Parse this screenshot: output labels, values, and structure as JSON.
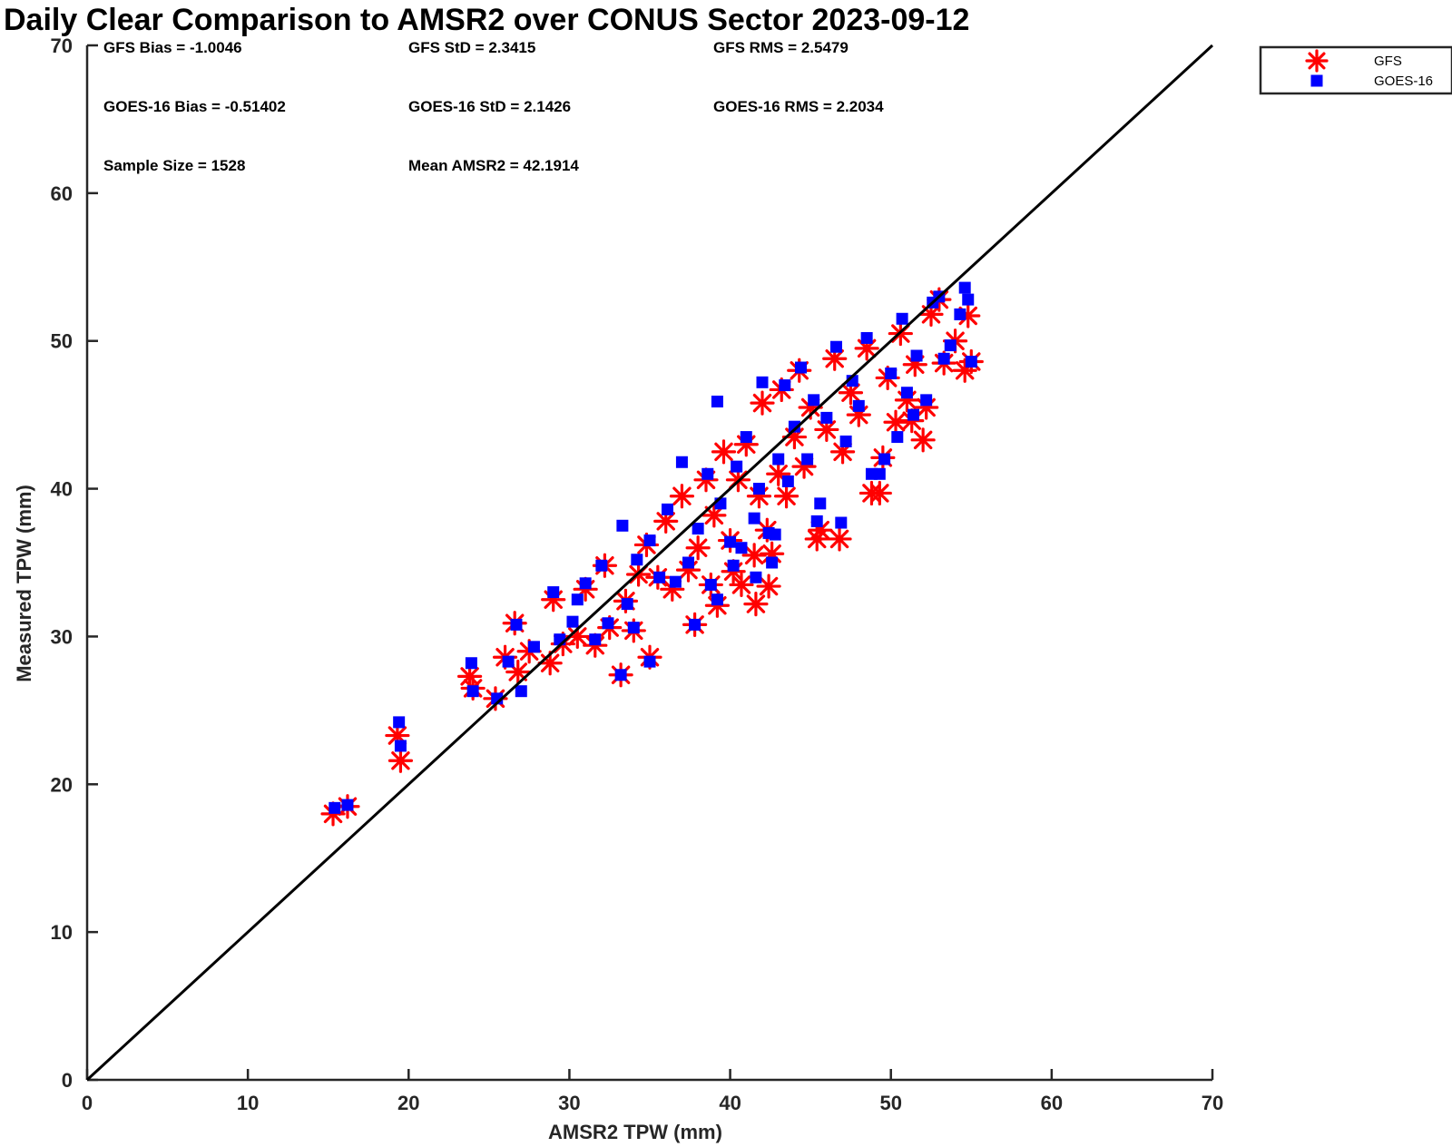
{
  "chart_data": {
    "type": "scatter",
    "title": "Daily Clear Comparison to AMSR2 over CONUS Sector 2023-09-12",
    "xlabel": "AMSR2 TPW (mm)",
    "ylabel": "Measured TPW (mm)",
    "xlim": [
      0,
      70
    ],
    "ylim": [
      0,
      70
    ],
    "xticks": [
      "0",
      "10",
      "20",
      "30",
      "40",
      "50",
      "60",
      "70"
    ],
    "yticks": [
      "0",
      "10",
      "20",
      "30",
      "40",
      "50",
      "60",
      "70"
    ],
    "grid": false,
    "legend_position": "outside top-right",
    "reference_line": {
      "x": [
        0,
        70
      ],
      "y": [
        0,
        70
      ],
      "color": "#000000"
    },
    "stats": [
      "GFS Bias = -1.0046",
      "GFS StD = 2.3415",
      "GFS RMS = 2.5479",
      "GOES-16 Bias = -0.51402",
      "GOES-16 StD = 2.1426",
      "GOES-16 RMS = 2.2034",
      "Sample Size = 1528",
      "Mean AMSR2 = 42.1914"
    ],
    "series": [
      {
        "name": "GFS",
        "marker": "asterisk",
        "color": "#ff0000",
        "points": [
          [
            15.3,
            18.0
          ],
          [
            16.2,
            18.5
          ],
          [
            19.3,
            23.3
          ],
          [
            19.5,
            21.6
          ],
          [
            23.8,
            27.3
          ],
          [
            24.0,
            26.5
          ],
          [
            25.4,
            25.8
          ],
          [
            26.0,
            28.6
          ],
          [
            26.6,
            30.9
          ],
          [
            26.8,
            27.6
          ],
          [
            27.5,
            29.0
          ],
          [
            28.8,
            28.2
          ],
          [
            29.0,
            32.5
          ],
          [
            29.6,
            29.5
          ],
          [
            30.5,
            30.0
          ],
          [
            31.0,
            33.2
          ],
          [
            31.6,
            29.4
          ],
          [
            32.2,
            34.8
          ],
          [
            32.5,
            30.6
          ],
          [
            33.2,
            27.4
          ],
          [
            33.5,
            32.4
          ],
          [
            34.0,
            30.4
          ],
          [
            34.3,
            34.2
          ],
          [
            35.0,
            28.6
          ],
          [
            34.8,
            36.2
          ],
          [
            35.5,
            34.0
          ],
          [
            36.0,
            37.8
          ],
          [
            36.4,
            33.2
          ],
          [
            37.0,
            39.5
          ],
          [
            37.4,
            34.5
          ],
          [
            37.8,
            30.8
          ],
          [
            38.0,
            36.0
          ],
          [
            38.5,
            40.6
          ],
          [
            38.8,
            33.5
          ],
          [
            39.2,
            32.1
          ],
          [
            39.0,
            38.2
          ],
          [
            39.6,
            42.5
          ],
          [
            40.0,
            36.5
          ],
          [
            40.2,
            34.4
          ],
          [
            40.5,
            40.6
          ],
          [
            40.7,
            33.5
          ],
          [
            41.0,
            43.0
          ],
          [
            41.5,
            35.5
          ],
          [
            41.6,
            32.2
          ],
          [
            41.8,
            39.5
          ],
          [
            42.0,
            45.8
          ],
          [
            42.3,
            37.2
          ],
          [
            42.4,
            33.4
          ],
          [
            42.6,
            35.6
          ],
          [
            43.0,
            41.0
          ],
          [
            43.2,
            46.7
          ],
          [
            43.5,
            39.5
          ],
          [
            44.0,
            43.5
          ],
          [
            44.3,
            48.0
          ],
          [
            44.6,
            41.5
          ],
          [
            45.0,
            45.5
          ],
          [
            45.4,
            36.6
          ],
          [
            45.6,
            37.2
          ],
          [
            46.0,
            44.0
          ],
          [
            46.5,
            48.8
          ],
          [
            46.8,
            36.6
          ],
          [
            47.0,
            42.5
          ],
          [
            47.5,
            46.5
          ],
          [
            48.0,
            45.0
          ],
          [
            48.5,
            49.5
          ],
          [
            48.8,
            39.7
          ],
          [
            49.3,
            39.7
          ],
          [
            49.5,
            42.1
          ],
          [
            49.8,
            47.5
          ],
          [
            50.3,
            44.5
          ],
          [
            50.6,
            50.5
          ],
          [
            51.0,
            46.0
          ],
          [
            51.3,
            44.6
          ],
          [
            51.5,
            48.4
          ],
          [
            52.0,
            43.3
          ],
          [
            52.2,
            45.5
          ],
          [
            52.5,
            51.8
          ],
          [
            53.0,
            52.8
          ],
          [
            53.3,
            48.5
          ],
          [
            54.0,
            50.0
          ],
          [
            54.6,
            48.0
          ],
          [
            54.8,
            51.7
          ],
          [
            55.0,
            48.6
          ]
        ]
      },
      {
        "name": "GOES-16",
        "marker": "square",
        "color": "#0000ff",
        "points": [
          [
            15.4,
            18.4
          ],
          [
            16.2,
            18.6
          ],
          [
            19.4,
            24.2
          ],
          [
            19.5,
            22.6
          ],
          [
            23.9,
            28.2
          ],
          [
            24.0,
            26.3
          ],
          [
            25.5,
            25.8
          ],
          [
            26.2,
            28.3
          ],
          [
            26.7,
            30.8
          ],
          [
            27.0,
            26.3
          ],
          [
            27.8,
            29.3
          ],
          [
            29.0,
            33.0
          ],
          [
            29.4,
            29.8
          ],
          [
            30.2,
            31.0
          ],
          [
            30.5,
            32.5
          ],
          [
            31.0,
            33.6
          ],
          [
            31.6,
            29.8
          ],
          [
            32.0,
            34.8
          ],
          [
            32.4,
            30.9
          ],
          [
            33.2,
            27.4
          ],
          [
            33.3,
            37.5
          ],
          [
            33.6,
            32.2
          ],
          [
            34.0,
            30.6
          ],
          [
            34.2,
            35.2
          ],
          [
            35.0,
            28.3
          ],
          [
            35.0,
            36.5
          ],
          [
            35.6,
            34.0
          ],
          [
            36.1,
            38.6
          ],
          [
            36.6,
            33.7
          ],
          [
            37.0,
            41.8
          ],
          [
            37.4,
            35.0
          ],
          [
            37.8,
            30.8
          ],
          [
            38.0,
            37.3
          ],
          [
            38.6,
            41.0
          ],
          [
            38.8,
            33.5
          ],
          [
            39.2,
            32.5
          ],
          [
            39.2,
            45.9
          ],
          [
            39.4,
            39.0
          ],
          [
            40.0,
            36.4
          ],
          [
            40.2,
            34.8
          ],
          [
            40.4,
            41.5
          ],
          [
            40.7,
            36.0
          ],
          [
            41.0,
            43.5
          ],
          [
            41.5,
            38.0
          ],
          [
            41.6,
            34.0
          ],
          [
            41.8,
            40.0
          ],
          [
            42.0,
            47.2
          ],
          [
            42.4,
            37.0
          ],
          [
            42.6,
            35.0
          ],
          [
            42.8,
            36.9
          ],
          [
            43.0,
            42.0
          ],
          [
            43.4,
            47.0
          ],
          [
            43.6,
            40.5
          ],
          [
            44.0,
            44.2
          ],
          [
            44.4,
            48.2
          ],
          [
            44.8,
            42.0
          ],
          [
            45.2,
            46.0
          ],
          [
            45.4,
            37.8
          ],
          [
            45.6,
            39.0
          ],
          [
            46.0,
            44.8
          ],
          [
            46.6,
            49.6
          ],
          [
            46.9,
            37.7
          ],
          [
            47.2,
            43.2
          ],
          [
            47.6,
            47.3
          ],
          [
            48.0,
            45.6
          ],
          [
            48.5,
            50.2
          ],
          [
            48.8,
            41.0
          ],
          [
            49.3,
            41.0
          ],
          [
            49.6,
            42.0
          ],
          [
            50.0,
            47.8
          ],
          [
            50.4,
            43.5
          ],
          [
            50.7,
            51.5
          ],
          [
            51.0,
            46.5
          ],
          [
            51.4,
            45.0
          ],
          [
            51.6,
            49.0
          ],
          [
            52.2,
            46.0
          ],
          [
            52.6,
            52.6
          ],
          [
            53.0,
            53.0
          ],
          [
            53.3,
            48.8
          ],
          [
            53.7,
            49.7
          ],
          [
            54.3,
            51.8
          ],
          [
            54.6,
            53.6
          ],
          [
            54.8,
            52.8
          ],
          [
            55.0,
            48.6
          ]
        ]
      }
    ]
  }
}
